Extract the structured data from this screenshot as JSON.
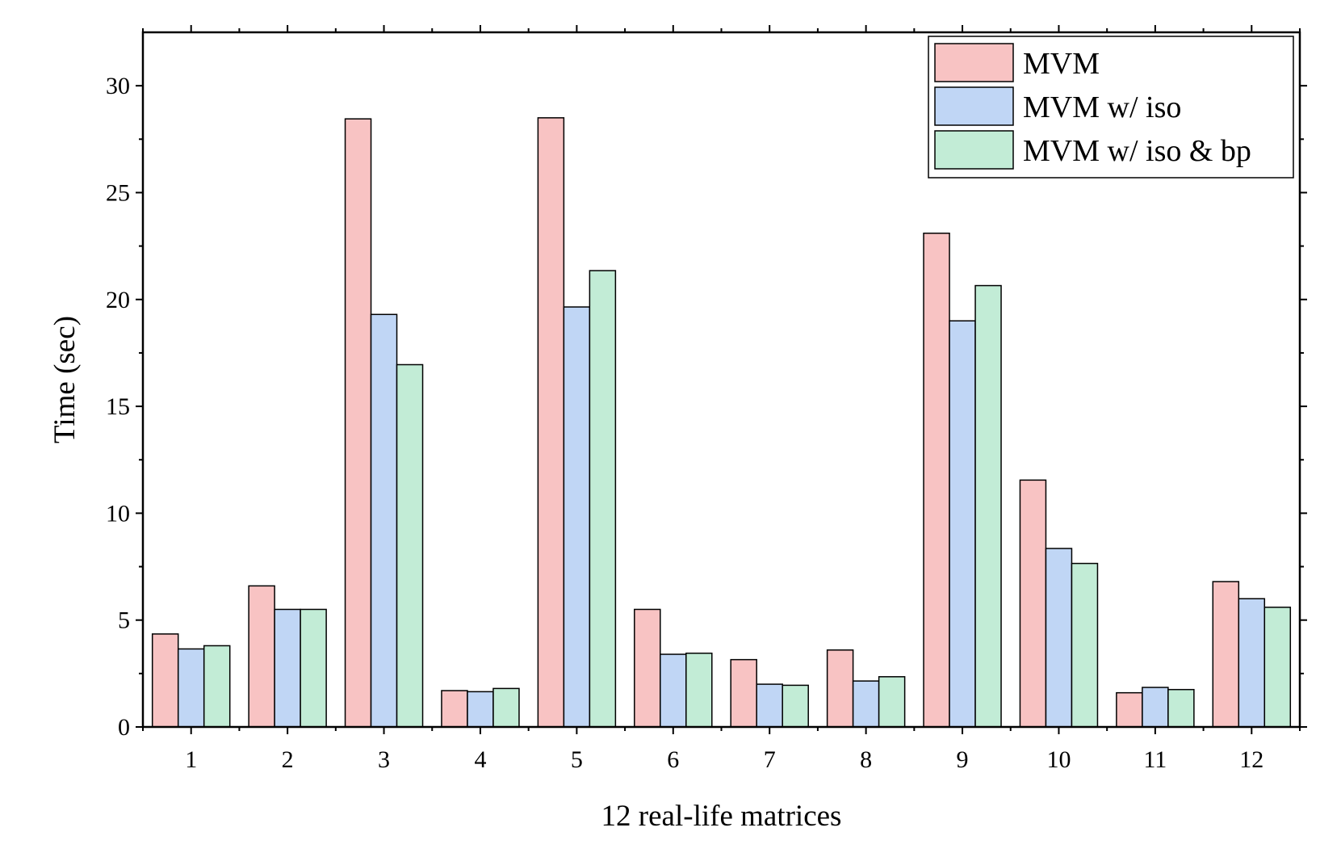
{
  "chart_data": {
    "type": "bar",
    "xlabel": "12 real-life matrices",
    "ylabel": "Time (sec)",
    "ylim": [
      0,
      32.5
    ],
    "yticks": [
      0,
      5,
      10,
      15,
      20,
      25,
      30
    ],
    "categories": [
      "1",
      "2",
      "3",
      "4",
      "5",
      "6",
      "7",
      "8",
      "9",
      "10",
      "11",
      "12"
    ],
    "series": [
      {
        "name": "MVM",
        "color": "#f8c3c3",
        "values": [
          4.35,
          6.6,
          28.45,
          1.7,
          28.5,
          5.5,
          3.15,
          3.6,
          23.1,
          11.55,
          1.6,
          6.8
        ]
      },
      {
        "name": "MVM w/ iso",
        "color": "#c0d6f5",
        "values": [
          3.65,
          5.5,
          19.3,
          1.65,
          19.65,
          3.4,
          2.0,
          2.15,
          19.0,
          8.35,
          1.85,
          6.0
        ]
      },
      {
        "name": "MVM w/ iso & bp",
        "color": "#c2ecd6",
        "values": [
          3.8,
          5.5,
          16.95,
          1.8,
          21.35,
          3.45,
          1.95,
          2.35,
          20.65,
          7.65,
          1.75,
          5.6
        ]
      }
    ],
    "legend_position": "top-right",
    "grid": false
  }
}
